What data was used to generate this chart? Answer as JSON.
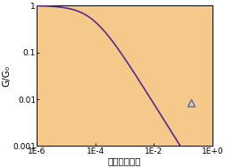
{
  "title": "",
  "xlabel": "せん断ひずみ",
  "ylabel": "G/G₀",
  "xlim_log": [
    -6,
    0
  ],
  "ylim_log": [
    -3,
    0
  ],
  "xtick_labels": [
    "1E-6",
    "1E-4",
    "1E-2",
    "1E+0"
  ],
  "xtick_vals": [
    1e-06,
    0.0001,
    0.01,
    1.0
  ],
  "ytick_labels": [
    "0.001",
    "0.01",
    "0.1",
    "1"
  ],
  "ytick_vals": [
    0.001,
    0.01,
    0.1,
    1
  ],
  "curve_color": "#5b2d8e",
  "fill_color": "#f5c98a",
  "marker_x": 0.18,
  "marker_y": 0.0085,
  "marker_color": "#4472c4",
  "background_color": "#f5c98a",
  "ref_strain": 8e-05
}
